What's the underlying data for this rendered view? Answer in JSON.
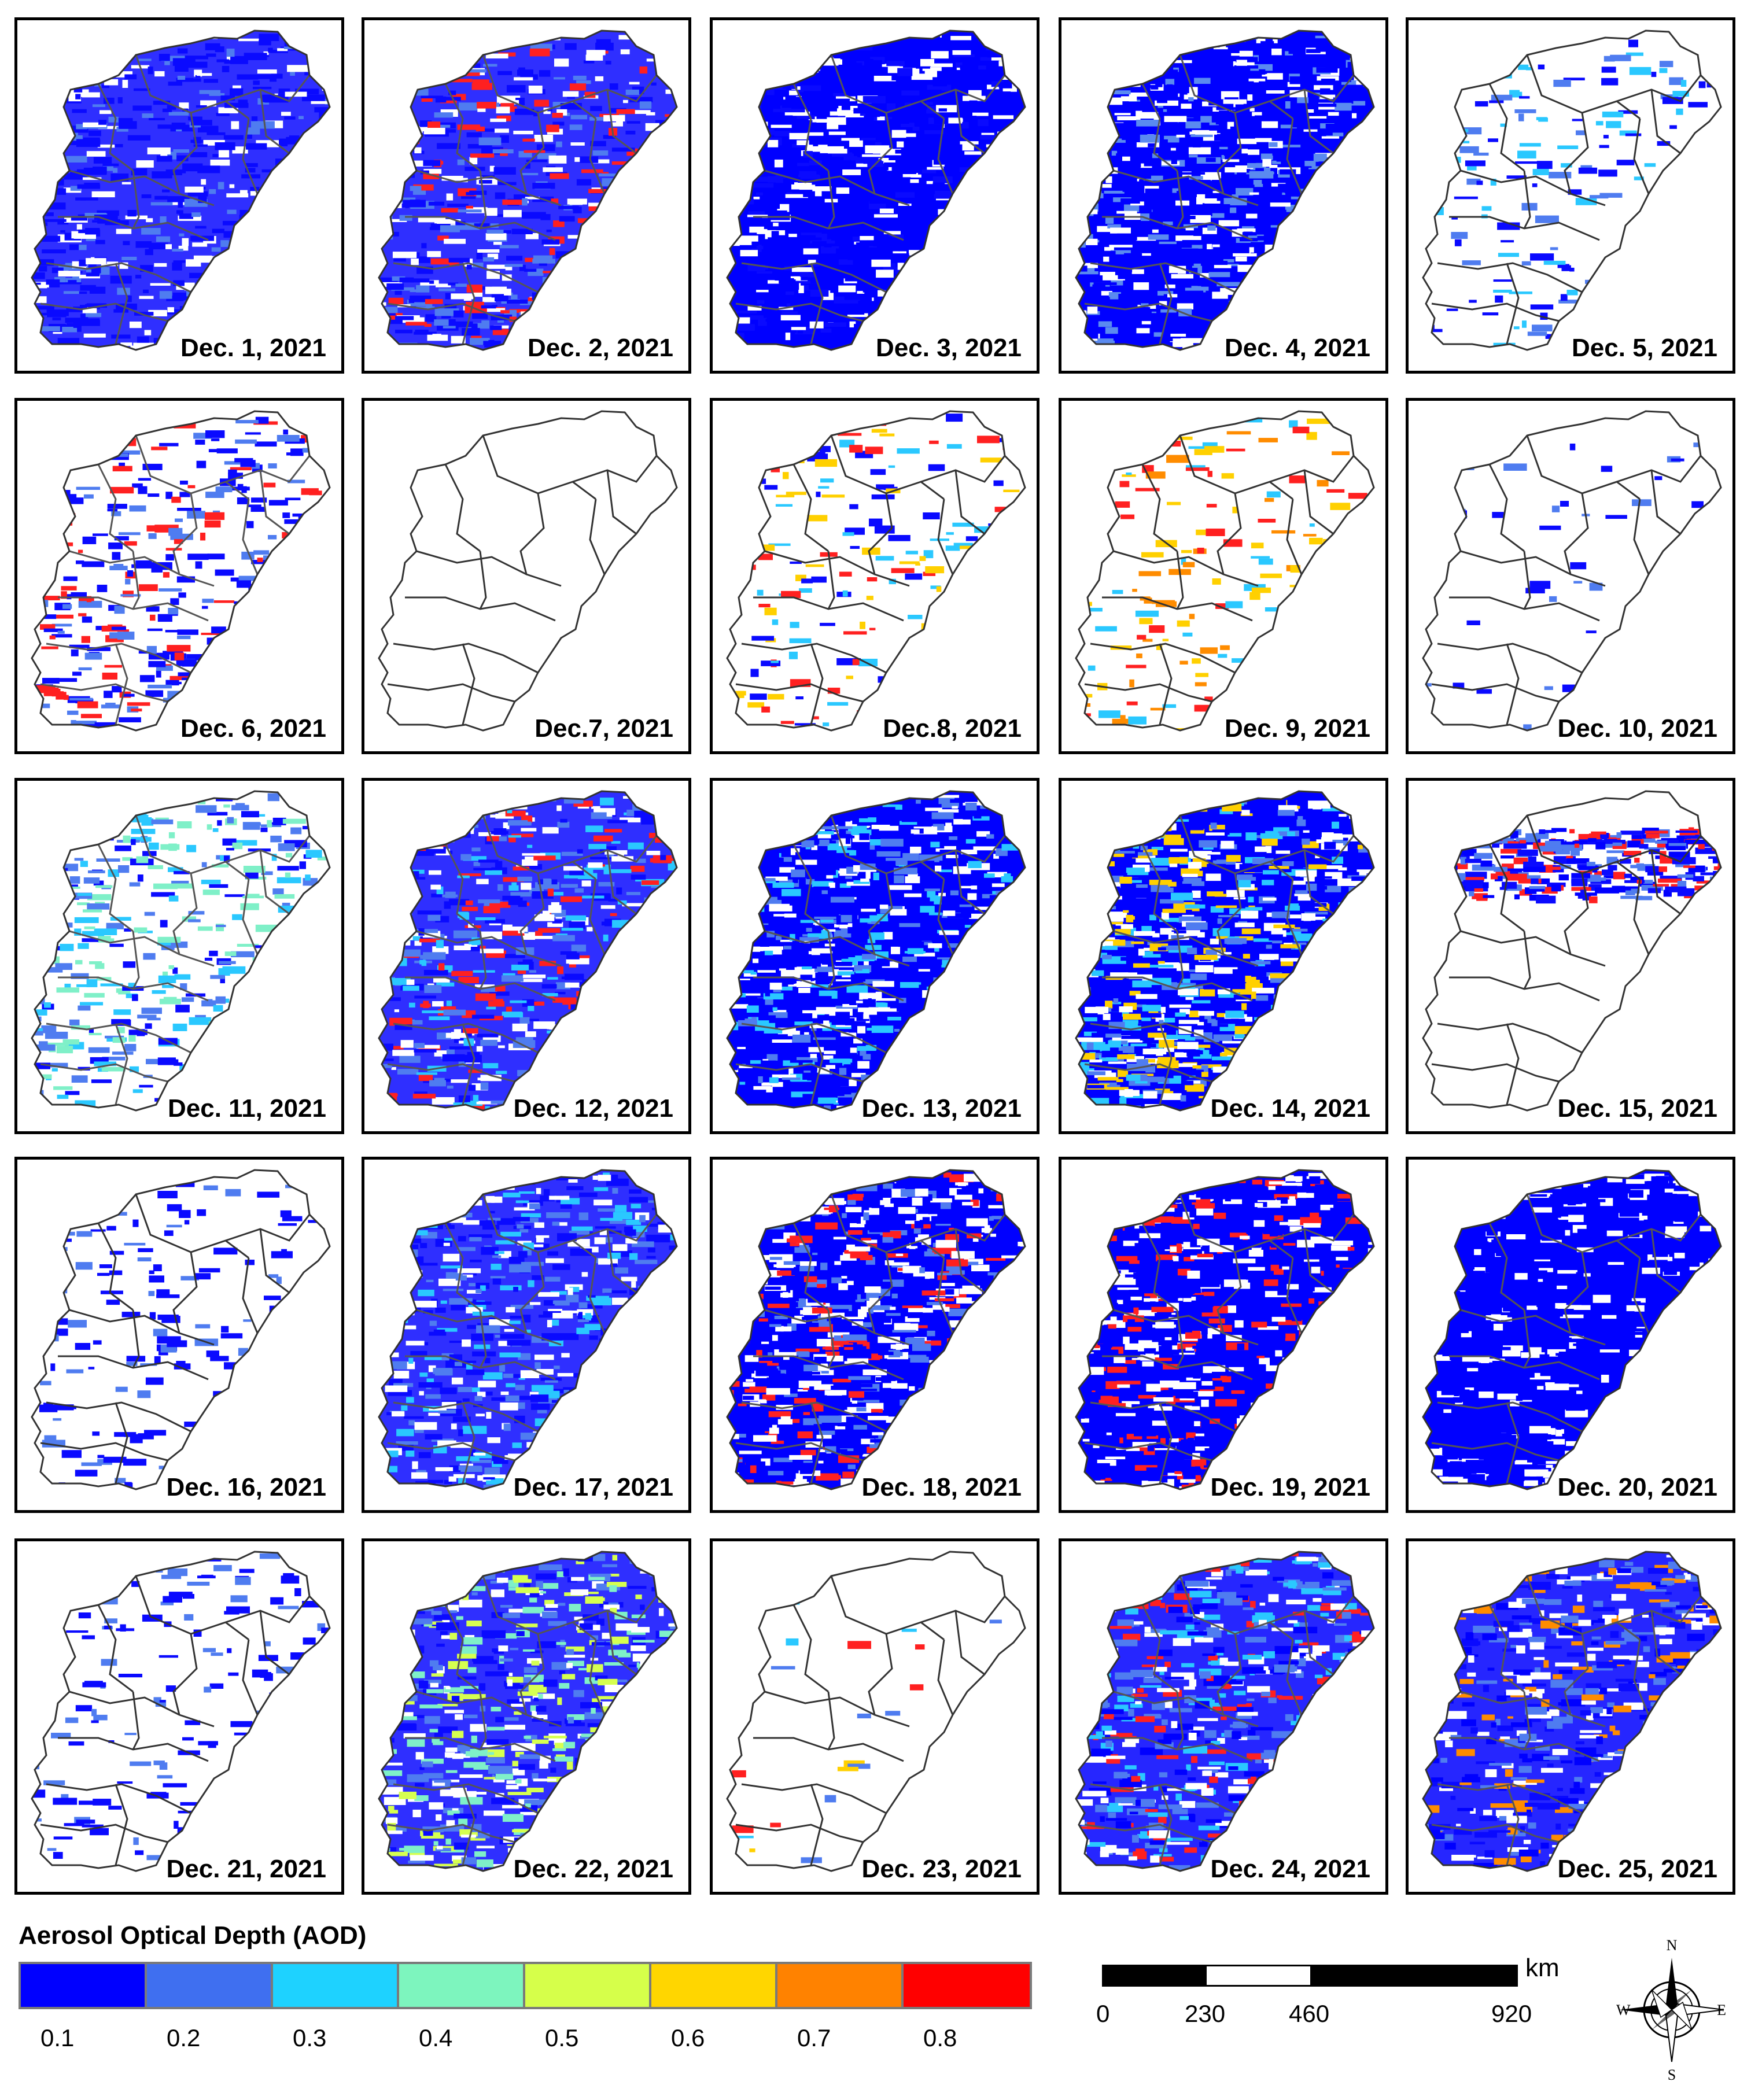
{
  "figure": {
    "panels": [
      {
        "label": "Dec. 1, 2021",
        "coverage": "heavy",
        "palette": [
          "#0a0aff",
          "#0a0aff",
          "#4f7cf0",
          "#0a0aff"
        ]
      },
      {
        "label": "Dec. 2, 2021",
        "coverage": "heavy",
        "palette": [
          "#0a0aff",
          "#0a0aff",
          "#4f7cf0",
          "#ff2020"
        ]
      },
      {
        "label": "Dec. 3, 2021",
        "coverage": "full",
        "palette": [
          "#0000ff",
          "#0000ff",
          "#0000ff",
          "#0a0aff"
        ]
      },
      {
        "label": "Dec. 4, 2021",
        "coverage": "full",
        "palette": [
          "#0000ff",
          "#0000ff",
          "#0000ff",
          "#5a8af0"
        ]
      },
      {
        "label": "Dec. 5, 2021",
        "coverage": "sparse",
        "palette": [
          "#0a0aff",
          "#4f7cf0",
          "#0a0aff",
          "#2ac8ff"
        ]
      },
      {
        "label": "Dec. 6, 2021",
        "coverage": "medium",
        "palette": [
          "#0a0aff",
          "#4f7cf0",
          "#0a0aff",
          "#ff2020"
        ]
      },
      {
        "label": "Dec.7, 2021",
        "coverage": "none",
        "palette": []
      },
      {
        "label": "Dec.8, 2021",
        "coverage": "sparse",
        "palette": [
          "#2ac8ff",
          "#ff2020",
          "#ffd000",
          "#0a0aff"
        ]
      },
      {
        "label": "Dec. 9, 2021",
        "coverage": "sparse",
        "palette": [
          "#ff8c00",
          "#ffd000",
          "#2ac8ff",
          "#ff2020"
        ]
      },
      {
        "label": "Dec. 10, 2021",
        "coverage": "trace",
        "palette": [
          "#0a0aff",
          "#4f7cf0"
        ]
      },
      {
        "label": "Dec. 11, 2021",
        "coverage": "medium",
        "palette": [
          "#0a0aff",
          "#4f7cf0",
          "#7ff0c8",
          "#2ac8ff"
        ]
      },
      {
        "label": "Dec. 12, 2021",
        "coverage": "heavy",
        "palette": [
          "#0a0aff",
          "#4f7cf0",
          "#2ac8ff",
          "#ff2020"
        ]
      },
      {
        "label": "Dec. 13, 2021",
        "coverage": "full",
        "palette": [
          "#0000ff",
          "#0000ff",
          "#4f7cf0",
          "#2ac8ff"
        ]
      },
      {
        "label": "Dec. 14, 2021",
        "coverage": "full",
        "palette": [
          "#0000ff",
          "#4f7cf0",
          "#2ac8ff",
          "#ffd000"
        ]
      },
      {
        "label": "Dec. 15, 2021",
        "coverage": "band",
        "palette": [
          "#0000ff",
          "#0a0aff",
          "#4f7cf0",
          "#ff2020"
        ]
      },
      {
        "label": "Dec. 16, 2021",
        "coverage": "sparse",
        "palette": [
          "#0a0aff",
          "#4f7cf0",
          "#0a0aff"
        ]
      },
      {
        "label": "Dec. 17, 2021",
        "coverage": "heavy",
        "palette": [
          "#0a0aff",
          "#4f7cf0",
          "#0a0aff",
          "#2ac8ff"
        ]
      },
      {
        "label": "Dec. 18, 2021",
        "coverage": "full",
        "palette": [
          "#0000ff",
          "#0000ff",
          "#4f7cf0",
          "#ff2020"
        ]
      },
      {
        "label": "Dec. 19, 2021",
        "coverage": "full",
        "palette": [
          "#0000ff",
          "#0000ff",
          "#0000ff",
          "#ff2020"
        ]
      },
      {
        "label": "Dec. 20, 2021",
        "coverage": "full",
        "palette": [
          "#0000ff",
          "#0000ff",
          "#0000ff",
          "#0000ff"
        ]
      },
      {
        "label": "Dec. 21, 2021",
        "coverage": "sparse",
        "palette": [
          "#0a0aff",
          "#4f7cf0",
          "#0a0aff"
        ]
      },
      {
        "label": "Dec. 22, 2021",
        "coverage": "heavy",
        "palette": [
          "#0a0aff",
          "#4f7cf0",
          "#7ff0c8",
          "#d6ff50"
        ]
      },
      {
        "label": "Dec. 23, 2021",
        "coverage": "trace",
        "palette": [
          "#ff2020",
          "#2ac8ff",
          "#ffd000",
          "#4f7cf0"
        ]
      },
      {
        "label": "Dec. 24, 2021",
        "coverage": "heavy",
        "palette": [
          "#0000ff",
          "#4f7cf0",
          "#2ac8ff",
          "#ff2020"
        ]
      },
      {
        "label": "Dec. 25, 2021",
        "coverage": "heavy",
        "palette": [
          "#0000ff",
          "#0a0aff",
          "#4f7cf0",
          "#ff8c00"
        ]
      }
    ]
  },
  "legend": {
    "title": "Aerosol Optical Depth (AOD)",
    "colors": [
      "#0000ff",
      "#3f6ff0",
      "#1ed2ff",
      "#7df5be",
      "#d6ff4a",
      "#ffd600",
      "#ff8200",
      "#ff0000"
    ],
    "ticks": [
      "0.1",
      "0.2",
      "0.3",
      "0.4",
      "0.5",
      "0.6",
      "0.7",
      "0.8"
    ]
  },
  "scale_bar": {
    "unit": "km",
    "ticks": [
      "0",
      "230",
      "460",
      "920"
    ],
    "tick_values_km": [
      0,
      230,
      460,
      920
    ]
  },
  "compass": {
    "north": "N",
    "south": "S",
    "east": "E",
    "west": "W"
  }
}
